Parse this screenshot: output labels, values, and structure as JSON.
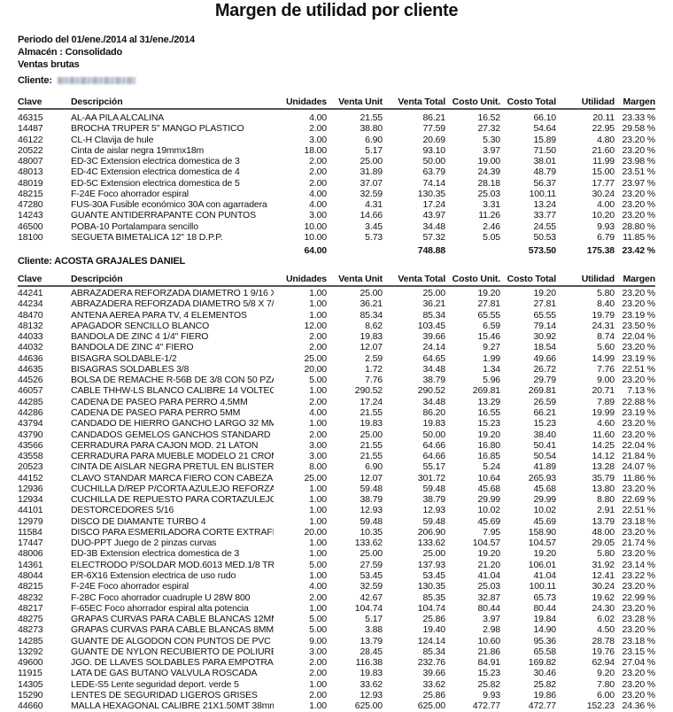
{
  "report": {
    "title": "Margen de utilidad por cliente",
    "period": "Periodo del 01/ene./2014 al 31/ene./2014",
    "warehouse": "Almacén : Consolidado",
    "sales_type": "Ventas brutas",
    "client_label": "Cliente:"
  },
  "columns": [
    "Clave",
    "Descripción",
    "Unidades",
    "Venta Unit",
    "Venta Total",
    "Costo Unit.",
    "Costo Total",
    "Utilidad",
    "Margen"
  ],
  "clients": [
    {
      "name": "",
      "rows": [
        [
          "46315",
          "AL-AA  PILA ALCALINA",
          "4.00",
          "21.55",
          "86.21",
          "16.52",
          "66.10",
          "20.11",
          "23.33 %"
        ],
        [
          "14487",
          "BROCHA TRUPER 5\" MANGO PLASTICO",
          "2.00",
          "38.80",
          "77.59",
          "27.32",
          "54.64",
          "22.95",
          "29.58 %"
        ],
        [
          "46122",
          "CL-H Clavija de hule",
          "3.00",
          "6.90",
          "20.69",
          "5.30",
          "15.89",
          "4.80",
          "23.20 %"
        ],
        [
          "20522",
          "Cinta de aislar negra 19mmx18m",
          "18.00",
          "5.17",
          "93.10",
          "3.97",
          "71.50",
          "21.60",
          "23.20 %"
        ],
        [
          "48007",
          "ED-3C Extension electrica domestica de 3",
          "2.00",
          "25.00",
          "50.00",
          "19.00",
          "38.01",
          "11.99",
          "23.98 %"
        ],
        [
          "48013",
          "ED-4C Extension electrica domestica de 4",
          "2.00",
          "31.89",
          "63.79",
          "24.39",
          "48.79",
          "15.00",
          "23.51 %"
        ],
        [
          "48019",
          "ED-5C Extension electrica domestica de 5",
          "2.00",
          "37.07",
          "74.14",
          "28.18",
          "56.37",
          "17.77",
          "23.97 %"
        ],
        [
          "48215",
          "F-24E Foco ahorrador espiral",
          "4.00",
          "32.59",
          "130.35",
          "25.03",
          "100.11",
          "30.24",
          "23.20 %"
        ],
        [
          "47280",
          "FUS-30A Fusible económico 30A con agarradera",
          "4.00",
          "4.31",
          "17.24",
          "3.31",
          "13.24",
          "4.00",
          "23.20 %"
        ],
        [
          "14243",
          "GUANTE ANTIDERRAPANTE CON PUNTOS",
          "3.00",
          "14.66",
          "43.97",
          "11.26",
          "33.77",
          "10.20",
          "23.20 %"
        ],
        [
          "46500",
          "POBA-10 Portalampara sencillo",
          "10.00",
          "3.45",
          "34.48",
          "2.46",
          "24.55",
          "9.93",
          "28.80 %"
        ],
        [
          "18100",
          "SEGUETA BIMETALICA 12\" 18 D.P.P.",
          "10.00",
          "5.73",
          "57.32",
          "5.05",
          "50.53",
          "6.79",
          "11.85 %"
        ]
      ],
      "totals": {
        "units": "64.00",
        "sale_total": "748.88",
        "cost_total": "573.50",
        "profit": "175.38",
        "margin": "23.42 %"
      }
    },
    {
      "name": "ACOSTA GRAJALES DANIEL",
      "rows": [
        [
          "44241",
          "ABRAZADERA REFORZADA DIAMETRO 1 9/16 X",
          "1.00",
          "25.00",
          "25.00",
          "19.20",
          "19.20",
          "5.80",
          "23.20 %"
        ],
        [
          "44234",
          "ABRAZADERA REFORZADA DIAMETRO 5/8 X 7/8",
          "1.00",
          "36.21",
          "36.21",
          "27.81",
          "27.81",
          "8.40",
          "23.20 %"
        ],
        [
          "48470",
          "ANTENA AEREA PARA TV, 4 ELEMENTOS",
          "1.00",
          "85.34",
          "85.34",
          "65.55",
          "65.55",
          "19.79",
          "23.19 %"
        ],
        [
          "48132",
          "APAGADOR SENCILLO BLANCO",
          "12.00",
          "8.62",
          "103.45",
          "6.59",
          "79.14",
          "24.31",
          "23.50 %"
        ],
        [
          "44033",
          "BANDOLA DE ZINC 4 1/4\" FIERO",
          "2.00",
          "19.83",
          "39.66",
          "15.46",
          "30.92",
          "8.74",
          "22.04 %"
        ],
        [
          "44032",
          "BANDOLA DE ZINC 4\" FIERO",
          "2.00",
          "12.07",
          "24.14",
          "9.27",
          "18.54",
          "5.60",
          "23.20 %"
        ],
        [
          "44636",
          "BISAGRA SOLDABLE-1/2",
          "25.00",
          "2.59",
          "64.65",
          "1.99",
          "49.66",
          "14.99",
          "23.19 %"
        ],
        [
          "44635",
          "BISAGRAS SOLDABLES 3/8",
          "20.00",
          "1.72",
          "34.48",
          "1.34",
          "26.72",
          "7.76",
          "22.51 %"
        ],
        [
          "44526",
          "BOLSA DE REMACHE R-56B DE 3/8 CON 50 PZAS",
          "5.00",
          "7.76",
          "38.79",
          "5.96",
          "29.79",
          "9.00",
          "23.20 %"
        ],
        [
          "46057",
          "CABLE THHW-LS BLANCO CALIBRE 14 VOLTECH",
          "1.00",
          "290.52",
          "290.52",
          "269.81",
          "269.81",
          "20.71",
          "7.13 %"
        ],
        [
          "44285",
          "CADENA DE PASEO PARA PERRO 4.5MM",
          "2.00",
          "17.24",
          "34.48",
          "13.29",
          "26.59",
          "7.89",
          "22.88 %"
        ],
        [
          "44286",
          "CADENA DE PASEO PARA PERRO 5MM",
          "4.00",
          "21.55",
          "86.20",
          "16.55",
          "66.21",
          "19.99",
          "23.19 %"
        ],
        [
          "43794",
          "CANDADO DE HIERRO GANCHO LARGO 32 MM EN",
          "1.00",
          "19.83",
          "19.83",
          "15.23",
          "15.23",
          "4.60",
          "23.20 %"
        ],
        [
          "43790",
          "CANDADOS GEMELOS GANCHOS STANDARD BLISTER",
          "2.00",
          "25.00",
          "50.00",
          "19.20",
          "38.40",
          "11.60",
          "23.20 %"
        ],
        [
          "43566",
          "CERRADURA PARA CAJON MOD. 21 LATON",
          "3.00",
          "21.55",
          "64.66",
          "16.80",
          "50.41",
          "14.25",
          "22.04 %"
        ],
        [
          "43558",
          "CERRADURA PARA MUEBLE MODELO 21 CROMO",
          "3.00",
          "21.55",
          "64.66",
          "16.85",
          "50.54",
          "14.12",
          "21.84 %"
        ],
        [
          "20523",
          "CINTA DE AISLAR NEGRA PRETUL EN BLISTER",
          "8.00",
          "6.90",
          "55.17",
          "5.24",
          "41.89",
          "13.28",
          "24.07 %"
        ],
        [
          "44152",
          "CLAVO STANDAR MARCA FIERO CON CABEZA DE",
          "25.00",
          "12.07",
          "301.72",
          "10.64",
          "265.93",
          "35.79",
          "11.86 %"
        ],
        [
          "12936",
          "CUCHILLA D/REP P/CORTA AZULEJO REFORZADA",
          "1.00",
          "59.48",
          "59.48",
          "45.68",
          "45.68",
          "13.80",
          "23.20 %"
        ],
        [
          "12934",
          "CUCHILLA DE REPUESTO PARA CORTAZULEJO C",
          "1.00",
          "38.79",
          "38.79",
          "29.99",
          "29.99",
          "8.80",
          "22.69 %"
        ],
        [
          "44101",
          "DESTORCEDORES 5/16",
          "1.00",
          "12.93",
          "12.93",
          "10.02",
          "10.02",
          "2.91",
          "22.51 %"
        ],
        [
          "12979",
          "DISCO DE DIAMANTE TURBO 4",
          "1.00",
          "59.48",
          "59.48",
          "45.69",
          "45.69",
          "13.79",
          "23.18 %"
        ],
        [
          "11584",
          "DISCO PARA ESMERILADORA CORTE EXTRAFINO",
          "20.00",
          "10.35",
          "206.90",
          "7.95",
          "158.90",
          "48.00",
          "23.20 %"
        ],
        [
          "17447",
          "DUO-PPT Juego de 2 pinzas curvas",
          "1.00",
          "133.62",
          "133.62",
          "104.57",
          "104.57",
          "29.05",
          "21.74 %"
        ],
        [
          "48006",
          "ED-3B Extension electrica domestica de 3",
          "1.00",
          "25.00",
          "25.00",
          "19.20",
          "19.20",
          "5.80",
          "23.20 %"
        ],
        [
          "14361",
          "ELECTRODO P/SOLDAR MOD.6013 MED.1/8 TRUPER",
          "5.00",
          "27.59",
          "137.93",
          "21.20",
          "106.01",
          "31.92",
          "23.14 %"
        ],
        [
          "48044",
          "ER-6X16 Extension electrica de uso rudo",
          "1.00",
          "53.45",
          "53.45",
          "41.04",
          "41.04",
          "12.41",
          "23.22 %"
        ],
        [
          "48215",
          "F-24E Foco ahorrador espiral",
          "4.00",
          "32.59",
          "130.35",
          "25.03",
          "100.11",
          "30.24",
          "23.20 %"
        ],
        [
          "48232",
          "F-28C Foco ahorrador cuadruple U 28W 800",
          "2.00",
          "42.67",
          "85.35",
          "32.87",
          "65.73",
          "19.62",
          "22.99 %"
        ],
        [
          "48217",
          "F-65EC Foco ahorrador espiral alta potencia",
          "1.00",
          "104.74",
          "104.74",
          "80.44",
          "80.44",
          "24.30",
          "23.20 %"
        ],
        [
          "48275",
          "GRAPAS CURVAS PARA CABLE BLANCAS 12MM",
          "5.00",
          "5.17",
          "25.86",
          "3.97",
          "19.84",
          "6.02",
          "23.28 %"
        ],
        [
          "48273",
          "GRAPAS CURVAS PARA CABLE BLANCAS 8MM",
          "5.00",
          "3.88",
          "19.40",
          "2.98",
          "14.90",
          "4.50",
          "23.20 %"
        ],
        [
          "14285",
          "GUANTE DE ALGODON CON PUNTOS DE PVC",
          "9.00",
          "13.79",
          "124.14",
          "10.60",
          "95.36",
          "28.78",
          "23.18 %"
        ],
        [
          "13292",
          "GUANTE DE NYLON RECUBIERTO DE POLIURETANO",
          "3.00",
          "28.45",
          "85.34",
          "21.86",
          "65.58",
          "19.76",
          "23.15 %"
        ],
        [
          "49600",
          "JGO. DE LLAVES SOLDABLES PARA EMPOTRAR",
          "2.00",
          "116.38",
          "232.76",
          "84.91",
          "169.82",
          "62.94",
          "27.04 %"
        ],
        [
          "11915",
          "LATA DE GAS BUTANO VALVULA ROSCADA",
          "2.00",
          "19.83",
          "39.66",
          "15.23",
          "30.46",
          "9.20",
          "23.20 %"
        ],
        [
          "14305",
          "LEDE-S5 Lente seguridad deport. verde 5",
          "1.00",
          "33.62",
          "33.62",
          "25.82",
          "25.82",
          "7.80",
          "23.20 %"
        ],
        [
          "15290",
          "LENTES DE SEGURIDAD LIGEROS GRISES",
          "2.00",
          "12.93",
          "25.86",
          "9.93",
          "19.86",
          "6.00",
          "23.20 %"
        ],
        [
          "44660",
          "MALLA HEXAGONAL CALIBRE 21X1.50MT 38mm",
          "1.00",
          "625.00",
          "625.00",
          "472.77",
          "472.77",
          "152.23",
          "24.36 %"
        ]
      ]
    }
  ]
}
